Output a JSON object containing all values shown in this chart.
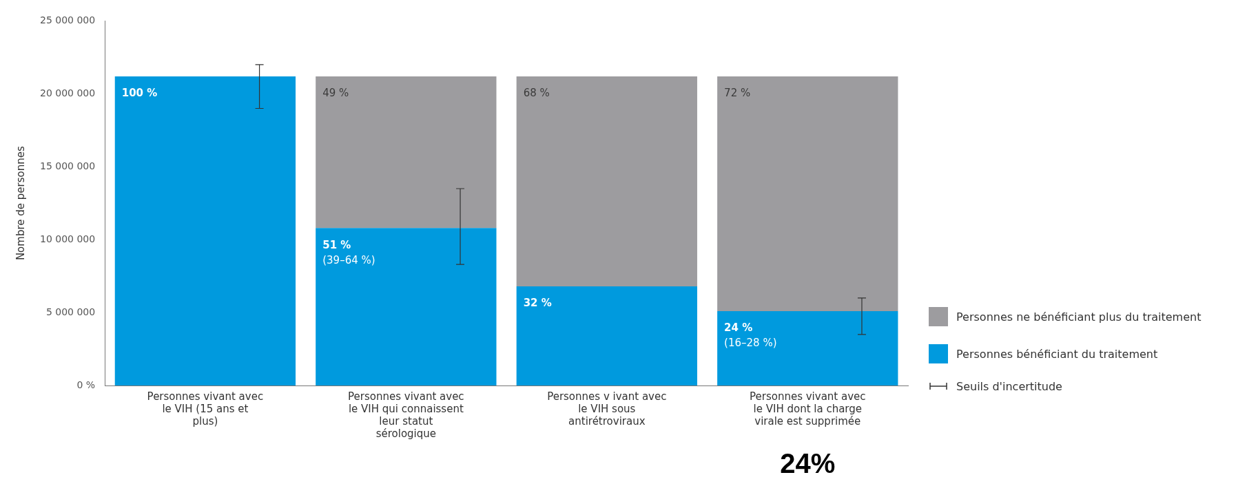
{
  "chart_data": {
    "type": "bar",
    "stacked": true,
    "ylabel": "Nombre de personnes",
    "categories": [
      "Personnes vivant avec le VIH (15 ans et plus)",
      "Personnes vivant avec le VIH qui connaissent leur statut sérologique",
      "Personnes v ivant avec le VIH sous antirétroviraux",
      "Personnes vivant avec le VIH dont la charge virale est supprimée"
    ],
    "series": [
      {
        "name": "Personnes bénéficiant du traitement",
        "color": "#009ade",
        "values": [
          21200000,
          10800000,
          6800000,
          5100000
        ],
        "errors": [
          [
            19000000,
            22000000
          ],
          [
            8300000,
            13500000
          ],
          null,
          [
            3500000,
            6000000
          ]
        ]
      },
      {
        "name": "Personnes ne bénéficiant plus du traitement",
        "color": "#9d9c9f",
        "values": [
          0,
          10400000,
          14400000,
          16100000
        ]
      }
    ],
    "ylim": [
      0,
      25000000
    ],
    "yticks": [
      {
        "value": 0,
        "label": "0 %"
      },
      {
        "value": 5000000,
        "label": "5 000 000"
      },
      {
        "value": 10000000,
        "label": "10 000 000"
      },
      {
        "value": 15000000,
        "label": "15 000 000"
      },
      {
        "value": 20000000,
        "label": "20 000 000"
      },
      {
        "value": 25000000,
        "label": "25 000 000"
      }
    ],
    "grid": false,
    "legend": "right",
    "annotations": [
      "Seuils d'incertitude",
      "24%",
      "100 %",
      "51 %\n(39–64 %)",
      "32 %",
      "24 %\n(16–28 %)",
      "49 %",
      "68 %",
      "72 %"
    ]
  }
}
